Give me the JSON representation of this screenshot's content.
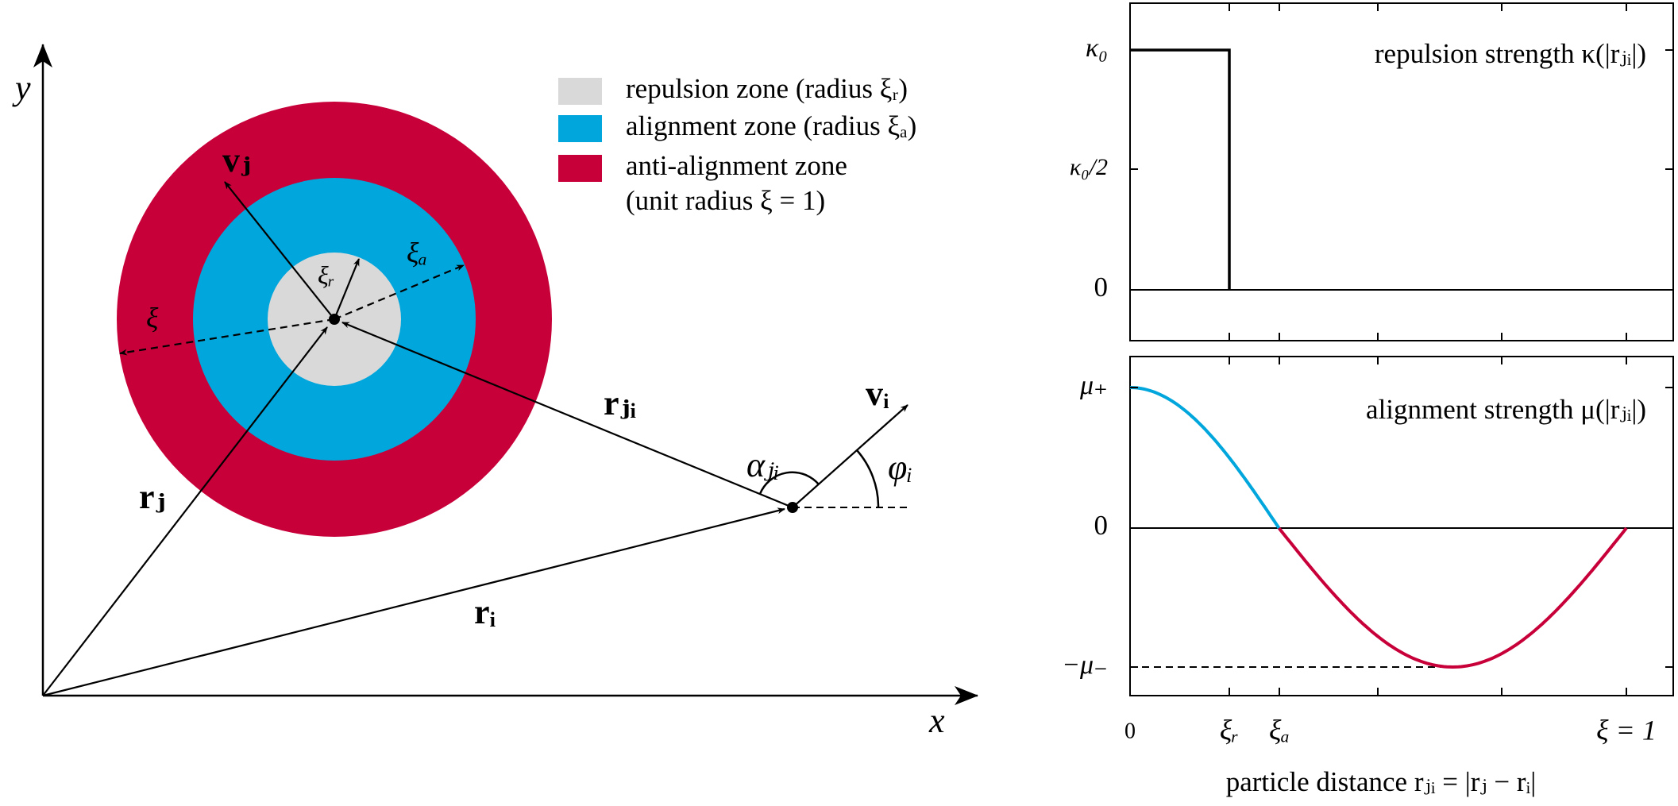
{
  "axes": {
    "x_label": "x",
    "y_label": "y"
  },
  "vectors": {
    "v_j": "vⱼ",
    "v_i": "vᵢ",
    "r_j": "rⱼ",
    "r_i": "rᵢ",
    "r_ji": "rⱼᵢ"
  },
  "radii": {
    "xi": "ξ",
    "xi_r": "ξᵣ",
    "xi_a": "ξₐ"
  },
  "angles": {
    "alpha": "αⱼᵢ",
    "phi": "φᵢ"
  },
  "legend": [
    "repulsion zone (radius ξᵣ)",
    "alignment zone (radius ξₐ)",
    "anti-alignment zone",
    "(unit radius ξ = 1)"
  ],
  "panels": [
    {
      "label": "repulsion strength κ(|rⱼᵢ|)",
      "y_ticks": [
        "κ₀",
        "κ₀/2",
        "0"
      ]
    },
    {
      "label": "alignment strength μ(|rⱼᵢ|)",
      "y_ticks": [
        "μ₊",
        "0",
        "−μ₋"
      ]
    }
  ],
  "x_ticks": [
    "0",
    "ξᵣ",
    "ξₐ",
    "ξ = 1"
  ],
  "x_axis_label": "particle distance rⱼᵢ = |rⱼ − rᵢ|"
}
